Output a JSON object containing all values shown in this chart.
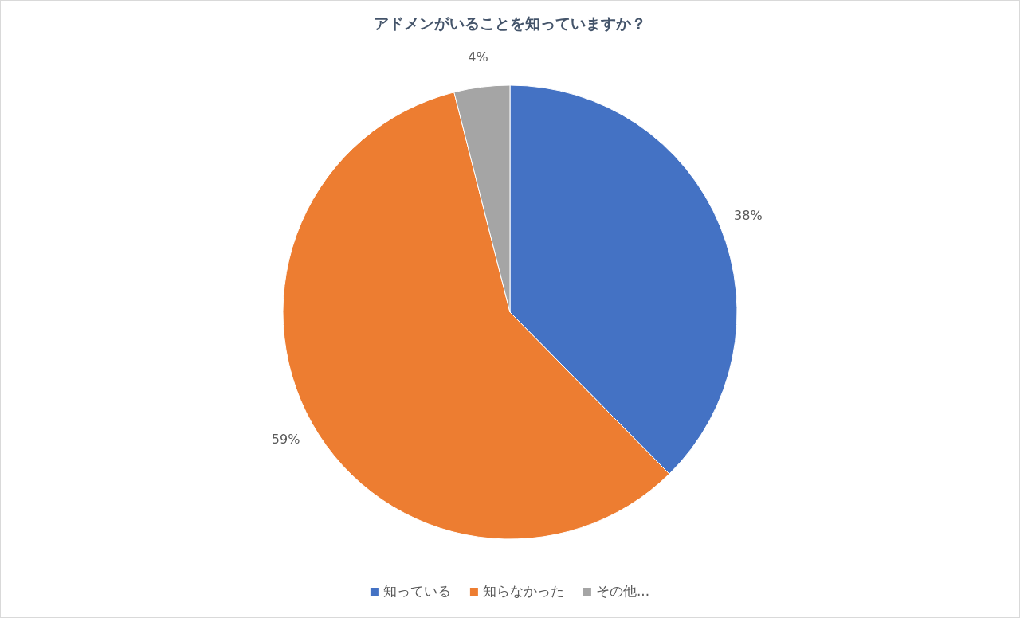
{
  "chart_data": {
    "type": "pie",
    "title": "アドメンがいることを知っていますか？",
    "categories": [
      "知っている",
      "知らなかった",
      "その他..."
    ],
    "values": [
      38,
      59,
      4
    ],
    "colors": [
      "#4472c4",
      "#ed7d31",
      "#a5a5a5"
    ],
    "value_labels": [
      "38%",
      "59%",
      "4%"
    ],
    "legend": "bottom"
  }
}
